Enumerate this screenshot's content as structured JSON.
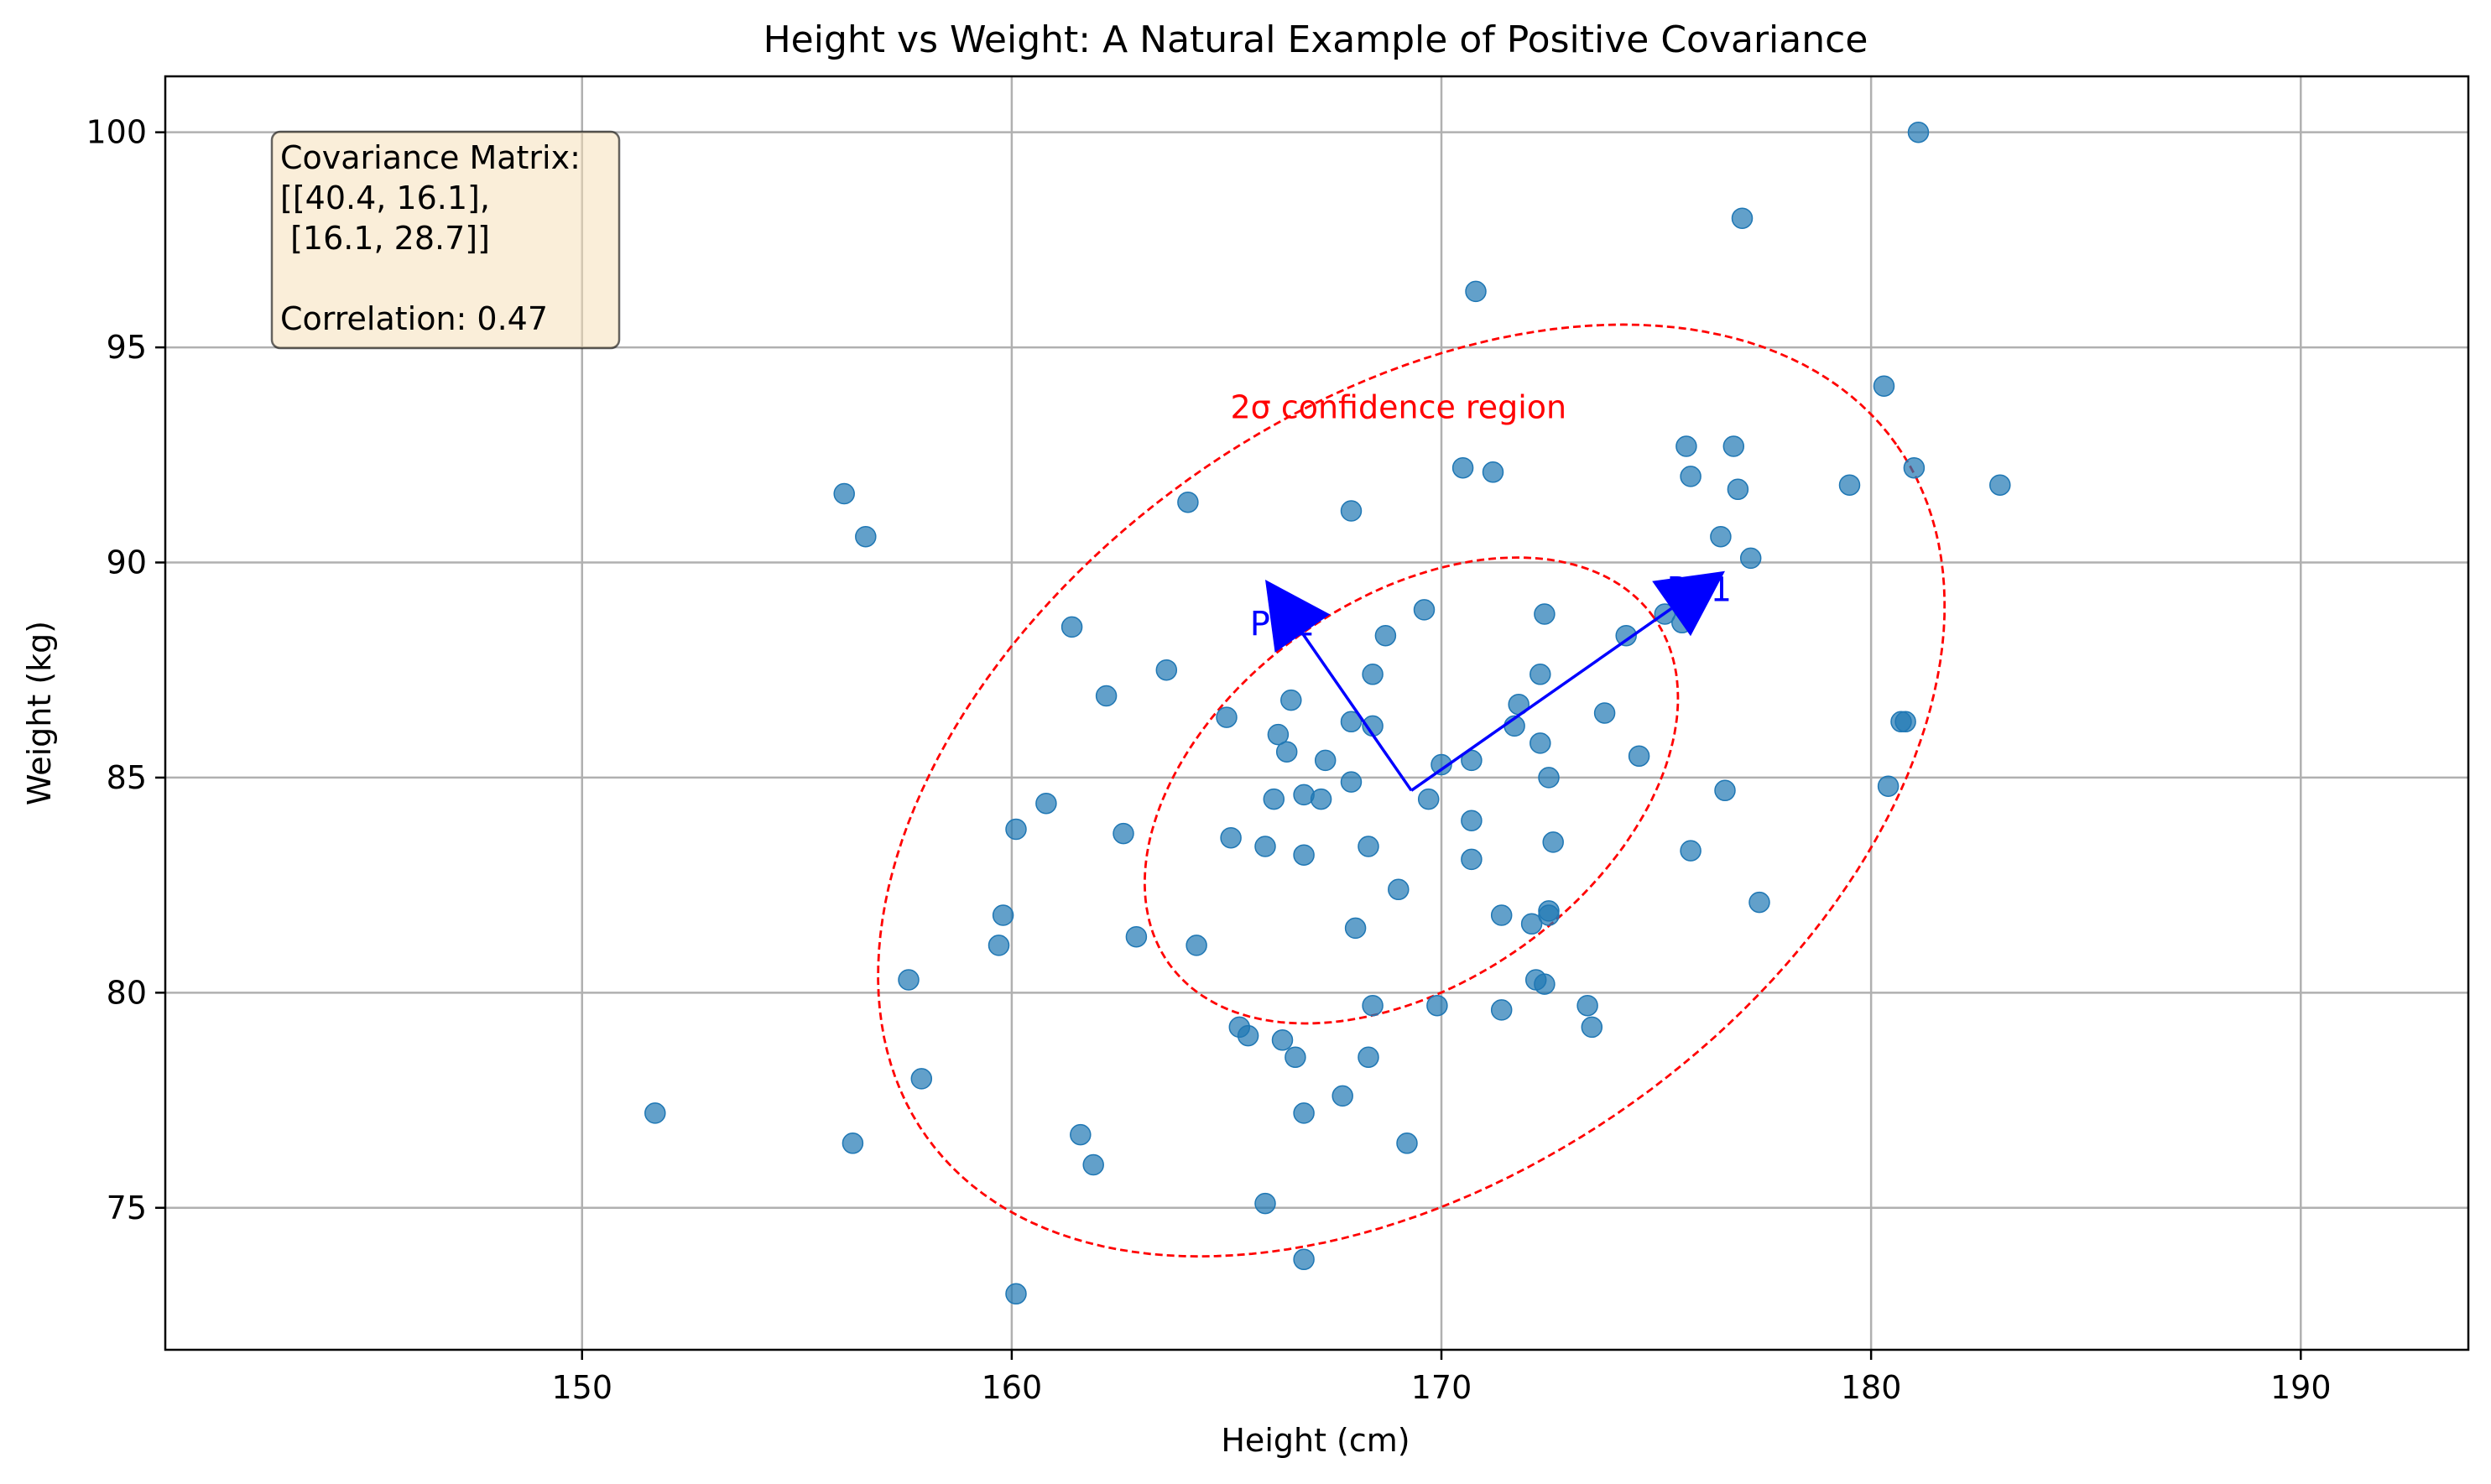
{
  "chart_data": {
    "type": "scatter",
    "title": "Height vs Weight: A Natural Example of Positive Covariance",
    "xlabel": "Height (cm)",
    "ylabel": "Weight (kg)",
    "xlim": [
      140.3,
      193.9
    ],
    "ylim": [
      71.7,
      101.3
    ],
    "xticks": [
      150,
      160,
      170,
      180,
      190
    ],
    "yticks": [
      75,
      80,
      85,
      90,
      95,
      100
    ],
    "grid": true,
    "point_color": "#1f77b4",
    "ellipse_color": "#ff0000",
    "vector_color": "#0000ff",
    "annotation_box": {
      "lines": [
        "Covariance Matrix:",
        "[[40.4, 16.1],",
        " [16.1, 28.7]]",
        "",
        "Correlation: 0.47"
      ],
      "background": "#f5deb3"
    },
    "ellipse_label": "2σ confidence region",
    "mean": [
      169.3,
      84.7
    ],
    "vectors": [
      {
        "label": "PC1",
        "to": [
          176.6,
          89.8
        ]
      },
      {
        "label": "PC2",
        "to": [
          165.9,
          89.6
        ]
      }
    ],
    "ellipses": [
      {
        "name": "1σ",
        "center": [
          169.3,
          84.7
        ],
        "semi_axes": [
          6.93,
          4.45
        ],
        "angle_deg": 35.5
      },
      {
        "name": "2σ",
        "center": [
          169.3,
          84.7
        ],
        "semi_axes": [
          13.86,
          8.9
        ],
        "angle_deg": 35.5
      }
    ],
    "series": [
      {
        "points": [
          [
            181.1,
            100.0
          ],
          [
            177.0,
            98.0
          ],
          [
            170.8,
            96.3
          ],
          [
            180.3,
            94.1
          ],
          [
            170.5,
            92.2
          ],
          [
            171.2,
            92.1
          ],
          [
            175.7,
            92.7
          ],
          [
            176.8,
            92.7
          ],
          [
            175.8,
            92.0
          ],
          [
            176.9,
            91.7
          ],
          [
            179.5,
            91.8
          ],
          [
            181.0,
            92.2
          ],
          [
            183.0,
            91.8
          ],
          [
            156.1,
            91.6
          ],
          [
            156.6,
            90.6
          ],
          [
            164.1,
            91.4
          ],
          [
            167.9,
            91.2
          ],
          [
            176.5,
            90.6
          ],
          [
            177.2,
            90.1
          ],
          [
            161.4,
            88.5
          ],
          [
            169.6,
            88.9
          ],
          [
            172.4,
            88.8
          ],
          [
            168.7,
            88.3
          ],
          [
            174.3,
            88.3
          ],
          [
            175.2,
            88.8
          ],
          [
            175.6,
            88.6
          ],
          [
            163.6,
            87.5
          ],
          [
            168.4,
            87.4
          ],
          [
            172.3,
            87.4
          ],
          [
            162.2,
            86.9
          ],
          [
            166.5,
            86.8
          ],
          [
            171.8,
            86.7
          ],
          [
            173.8,
            86.5
          ],
          [
            165.0,
            86.4
          ],
          [
            167.9,
            86.3
          ],
          [
            168.4,
            86.2
          ],
          [
            171.7,
            86.2
          ],
          [
            180.7,
            86.3
          ],
          [
            180.8,
            86.3
          ],
          [
            166.2,
            86.0
          ],
          [
            166.4,
            85.6
          ],
          [
            172.3,
            85.8
          ],
          [
            174.6,
            85.5
          ],
          [
            167.3,
            85.4
          ],
          [
            170.0,
            85.3
          ],
          [
            170.7,
            85.4
          ],
          [
            172.5,
            85.0
          ],
          [
            167.9,
            84.9
          ],
          [
            166.1,
            84.5
          ],
          [
            166.8,
            84.6
          ],
          [
            169.7,
            84.5
          ],
          [
            176.6,
            84.7
          ],
          [
            180.4,
            84.8
          ],
          [
            160.8,
            84.4
          ],
          [
            167.2,
            84.5
          ],
          [
            160.1,
            83.8
          ],
          [
            162.6,
            83.7
          ],
          [
            165.1,
            83.6
          ],
          [
            170.7,
            84.0
          ],
          [
            165.9,
            83.4
          ],
          [
            168.3,
            83.4
          ],
          [
            172.6,
            83.5
          ],
          [
            166.8,
            83.2
          ],
          [
            170.7,
            83.1
          ],
          [
            175.8,
            83.3
          ],
          [
            169.0,
            82.4
          ],
          [
            171.4,
            81.8
          ],
          [
            172.1,
            81.6
          ],
          [
            172.5,
            81.9
          ],
          [
            172.5,
            81.8
          ],
          [
            159.8,
            81.8
          ],
          [
            177.4,
            82.1
          ],
          [
            168.0,
            81.5
          ],
          [
            162.9,
            81.3
          ],
          [
            164.3,
            81.1
          ],
          [
            159.7,
            81.1
          ],
          [
            157.6,
            80.3
          ],
          [
            172.2,
            80.3
          ],
          [
            172.4,
            80.2
          ],
          [
            168.4,
            79.7
          ],
          [
            169.9,
            79.7
          ],
          [
            171.4,
            79.6
          ],
          [
            173.4,
            79.7
          ],
          [
            173.5,
            79.2
          ],
          [
            165.3,
            79.2
          ],
          [
            165.5,
            79.0
          ],
          [
            166.3,
            78.9
          ],
          [
            166.6,
            78.5
          ],
          [
            168.3,
            78.5
          ],
          [
            157.9,
            78.0
          ],
          [
            167.7,
            77.6
          ],
          [
            151.7,
            77.2
          ],
          [
            166.8,
            77.2
          ],
          [
            161.6,
            76.7
          ],
          [
            156.3,
            76.5
          ],
          [
            169.2,
            76.5
          ],
          [
            161.9,
            76.0
          ],
          [
            165.9,
            75.1
          ],
          [
            166.8,
            73.8
          ],
          [
            160.1,
            73.0
          ]
        ]
      }
    ]
  }
}
